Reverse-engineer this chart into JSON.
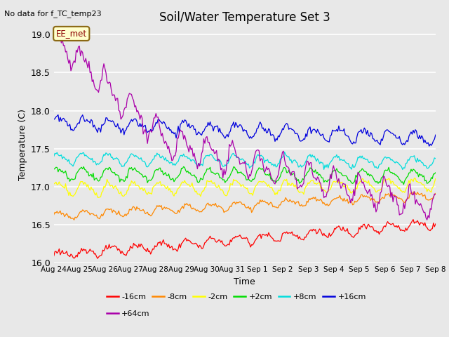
{
  "title": "Soil/Water Temperature Set 3",
  "subtitle": "No data for f_TC_temp23",
  "xlabel": "Time",
  "ylabel": "Temperature (C)",
  "annotation": "EE_met",
  "ylim": [
    16.0,
    19.1
  ],
  "background_color": "#e8e8e8",
  "series_order": [
    "-16cm",
    "-8cm",
    "-2cm",
    "+2cm",
    "+8cm",
    "+16cm",
    "+64cm"
  ],
  "series": {
    "-16cm": {
      "color": "#ff0000",
      "base": 16.1,
      "trend": 0.028,
      "amp": 0.055,
      "phase": 0.0,
      "noise": 0.018
    },
    "-8cm": {
      "color": "#ff8800",
      "base": 16.62,
      "trend": 0.018,
      "amp": 0.045,
      "phase": 0.2,
      "noise": 0.015
    },
    "-2cm": {
      "color": "#ffff00",
      "base": 16.97,
      "trend": 0.004,
      "amp": 0.075,
      "phase": 0.4,
      "noise": 0.018
    },
    "+2cm": {
      "color": "#00dd00",
      "base": 17.17,
      "trend": -0.002,
      "amp": 0.075,
      "phase": 0.5,
      "noise": 0.018
    },
    "+8cm": {
      "color": "#00dddd",
      "base": 17.37,
      "trend": -0.003,
      "amp": 0.065,
      "phase": 0.6,
      "noise": 0.015
    },
    "+16cm": {
      "color": "#0000dd",
      "base": 17.85,
      "trend": -0.015,
      "amp": 0.075,
      "phase": 0.3,
      "noise": 0.025
    },
    "+64cm": {
      "color": "#aa00aa",
      "base": 18.98,
      "trend": -0.08,
      "amp": 0.15,
      "phase": 1.0,
      "noise": 0.04
    }
  },
  "xtick_labels": [
    "Aug 24",
    "Aug 25",
    "Aug 26",
    "Aug 27",
    "Aug 28",
    "Aug 29",
    "Aug 30",
    "Aug 31",
    "Sep 1",
    "Sep 2",
    "Sep 3",
    "Sep 4",
    "Sep 5",
    "Sep 6",
    "Sep 7",
    "Sep 8"
  ],
  "ytick_vals": [
    16.0,
    16.5,
    17.0,
    17.5,
    18.0,
    18.5,
    19.0
  ],
  "legend_row1": [
    [
      "-16cm",
      "#ff0000"
    ],
    [
      "-8cm",
      "#ff8800"
    ],
    [
      "-2cm",
      "#ffff00"
    ],
    [
      "+2cm",
      "#00dd00"
    ],
    [
      "+8cm",
      "#00dddd"
    ],
    [
      "+16cm",
      "#0000dd"
    ]
  ],
  "legend_row2": [
    [
      "+64cm",
      "#aa00aa"
    ]
  ]
}
